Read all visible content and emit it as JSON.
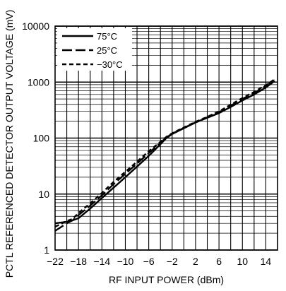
{
  "chart_data": {
    "type": "line",
    "title": "",
    "xlabel": "RF INPUT POWER (dBm)",
    "ylabel": "PCTL REFERENCED DETECTOR OUTPUT VOLTAGE (mV)",
    "xlim": [
      -22,
      16
    ],
    "ylim": [
      1,
      10000
    ],
    "yscale": "log",
    "grid": true,
    "legend_position": "top-left",
    "x_ticks": [
      -22,
      -18,
      -14,
      -10,
      -6,
      -2,
      2,
      6,
      10,
      14
    ],
    "x_tick_labels": [
      "−22",
      "−18",
      "−14",
      "−10",
      "−6",
      "−2",
      "2",
      "6",
      "10",
      "14"
    ],
    "y_ticks": [
      1,
      10,
      100,
      1000,
      10000
    ],
    "y_tick_labels": [
      "1",
      "10",
      "100",
      "1000",
      "10000"
    ],
    "series": [
      {
        "name": "75°C",
        "dash": "solid",
        "x": [
          -22,
          -20,
          -19,
          -18,
          -16,
          -14,
          -12,
          -10,
          -8,
          -6,
          -4,
          -3,
          -2,
          0,
          2,
          4,
          6,
          8,
          10,
          12,
          14,
          15.5
        ],
        "y": [
          3.0,
          3.2,
          3.4,
          3.7,
          5.5,
          8.5,
          13,
          20,
          31,
          48,
          78,
          100,
          118,
          150,
          190,
          230,
          280,
          360,
          470,
          600,
          800,
          1050
        ]
      },
      {
        "name": "25°C",
        "dash": "long-dash",
        "x": [
          -22,
          -20,
          -19,
          -18,
          -16,
          -14,
          -12,
          -10,
          -8,
          -6,
          -4,
          -3,
          -2,
          0,
          2,
          4,
          6,
          8,
          10,
          12,
          14,
          15.5
        ],
        "y": [
          2.2,
          3.0,
          3.4,
          4.2,
          6.2,
          9.5,
          15,
          23,
          35,
          54,
          82,
          102,
          120,
          152,
          190,
          235,
          290,
          380,
          500,
          640,
          850,
          1100
        ]
      },
      {
        "name": "−30°C",
        "dash": "short-dash",
        "x": [
          -22,
          -20,
          -19,
          -18,
          -16,
          -14,
          -12,
          -10,
          -8,
          -6,
          -4,
          -3,
          -2,
          0,
          2,
          4,
          6,
          8,
          10,
          12,
          14,
          15.5
        ],
        "y": [
          2.6,
          3.3,
          3.6,
          4.6,
          6.8,
          10.5,
          16.5,
          25,
          38,
          58,
          86,
          105,
          122,
          155,
          195,
          240,
          300,
          395,
          520,
          670,
          880,
          1120
        ]
      }
    ]
  }
}
